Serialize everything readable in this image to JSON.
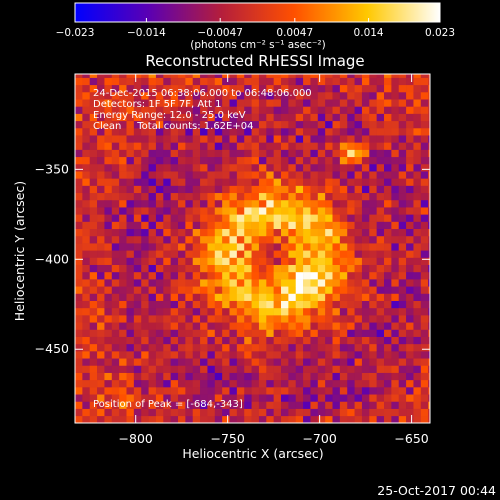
{
  "chart_data": {
    "type": "heatmap",
    "title": "Reconstructed RHESSI Image",
    "xlabel": "Heliocentric X (arcsec)",
    "ylabel": "Heliocentric Y (arcsec)",
    "xlim": [
      -833,
      -640
    ],
    "ylim": [
      -491,
      -297
    ],
    "x_ticks": [
      -800,
      -750,
      -700,
      -650
    ],
    "x_tick_labels": [
      "−800",
      "−750",
      "−700",
      "−650"
    ],
    "y_ticks": [
      -350,
      -400,
      -450
    ],
    "y_tick_labels": [
      "−350",
      "−400",
      "−450"
    ],
    "colorbar": {
      "range": [
        -0.023,
        0.023
      ],
      "ticks": [
        -0.023,
        -0.014,
        -0.0047,
        0.0047,
        0.014,
        0.023
      ],
      "tick_labels": [
        "−0.023",
        "−0.014",
        "−0.0047",
        "0.0047",
        "0.014",
        "0.023"
      ],
      "unit_label": "(photons cm⁻² s⁻¹ asec⁻²)",
      "colors": [
        "#0000ff",
        "#5a00b4",
        "#b41e3c",
        "#ff5000",
        "#ffc800",
        "#ffffff"
      ]
    },
    "annotations": [
      "24-Dec-2015 06:38:06.000 to 06:48:06.000",
      "Detectors: 1F 5F 7F, Att 1",
      "Energy Range: 12.0 - 25.0 keV",
      "Clean     Total counts: 1.62E+04"
    ],
    "peak_label": "Position of Peak = [-684,-343]",
    "source_center": [
      -726,
      -401
    ],
    "peak_position": [
      -684,
      -343
    ],
    "grid": false
  },
  "footer": {
    "timestamp": "25-Oct-2017 00:44"
  }
}
